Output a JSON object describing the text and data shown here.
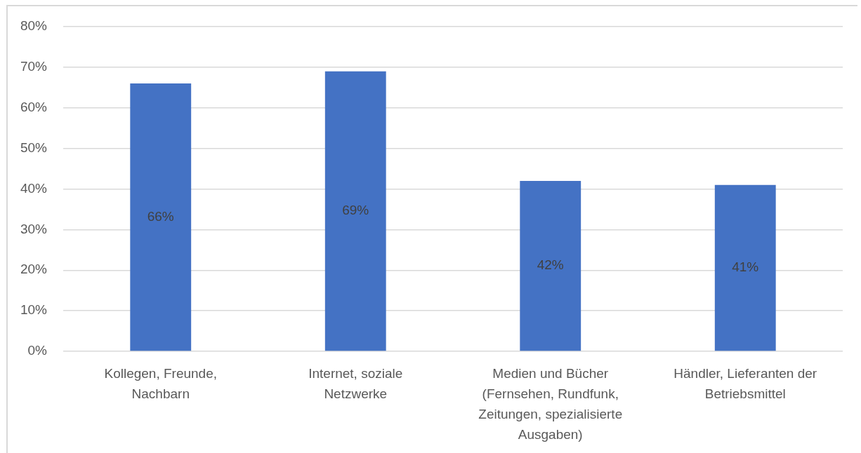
{
  "chart_data": {
    "type": "bar",
    "categories": [
      "Kollegen, Freunde, Nachbarn",
      "Internet, soziale Netzwerke",
      "Medien und Bücher (Fernsehen, Rundfunk, Zeitungen, spezialisierte Ausgaben)",
      "Händler, Lieferanten der Betriebsmittel"
    ],
    "values": [
      66,
      69,
      42,
      41
    ],
    "color": "#4472c4",
    "value_labels": [
      "66%",
      "69%",
      "42%",
      "41%"
    ],
    "ylim": [
      0,
      80
    ],
    "yticks": [
      {
        "value": 0,
        "label": "0%"
      },
      {
        "value": 10,
        "label": "10%"
      },
      {
        "value": 20,
        "label": "20%"
      },
      {
        "value": 30,
        "label": "30%"
      },
      {
        "value": 40,
        "label": "40%"
      },
      {
        "value": 50,
        "label": "50%"
      },
      {
        "value": 60,
        "label": "60%"
      },
      {
        "value": 70,
        "label": "70%"
      },
      {
        "value": 80,
        "label": "80%"
      }
    ],
    "grid": "y"
  }
}
